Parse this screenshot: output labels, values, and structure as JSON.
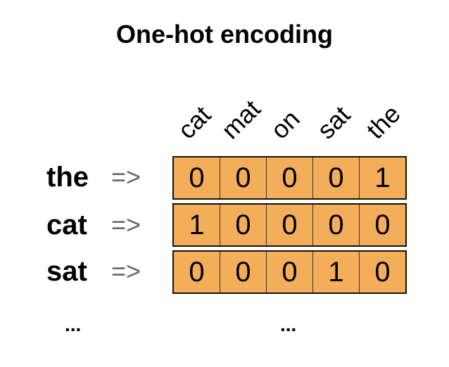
{
  "title": "One-hot encoding",
  "vocab": [
    "cat",
    "mat",
    "on",
    "sat",
    "the"
  ],
  "rows": [
    {
      "word": "the",
      "arrow": "=>",
      "vector": [
        "0",
        "0",
        "0",
        "0",
        "1"
      ]
    },
    {
      "word": "cat",
      "arrow": "=>",
      "vector": [
        "1",
        "0",
        "0",
        "0",
        "0"
      ]
    },
    {
      "word": "sat",
      "arrow": "=>",
      "vector": [
        "0",
        "0",
        "0",
        "1",
        "0"
      ]
    }
  ],
  "ellipsis_left": "...",
  "ellipsis_right": "...",
  "cell_color": "#f4ad59"
}
